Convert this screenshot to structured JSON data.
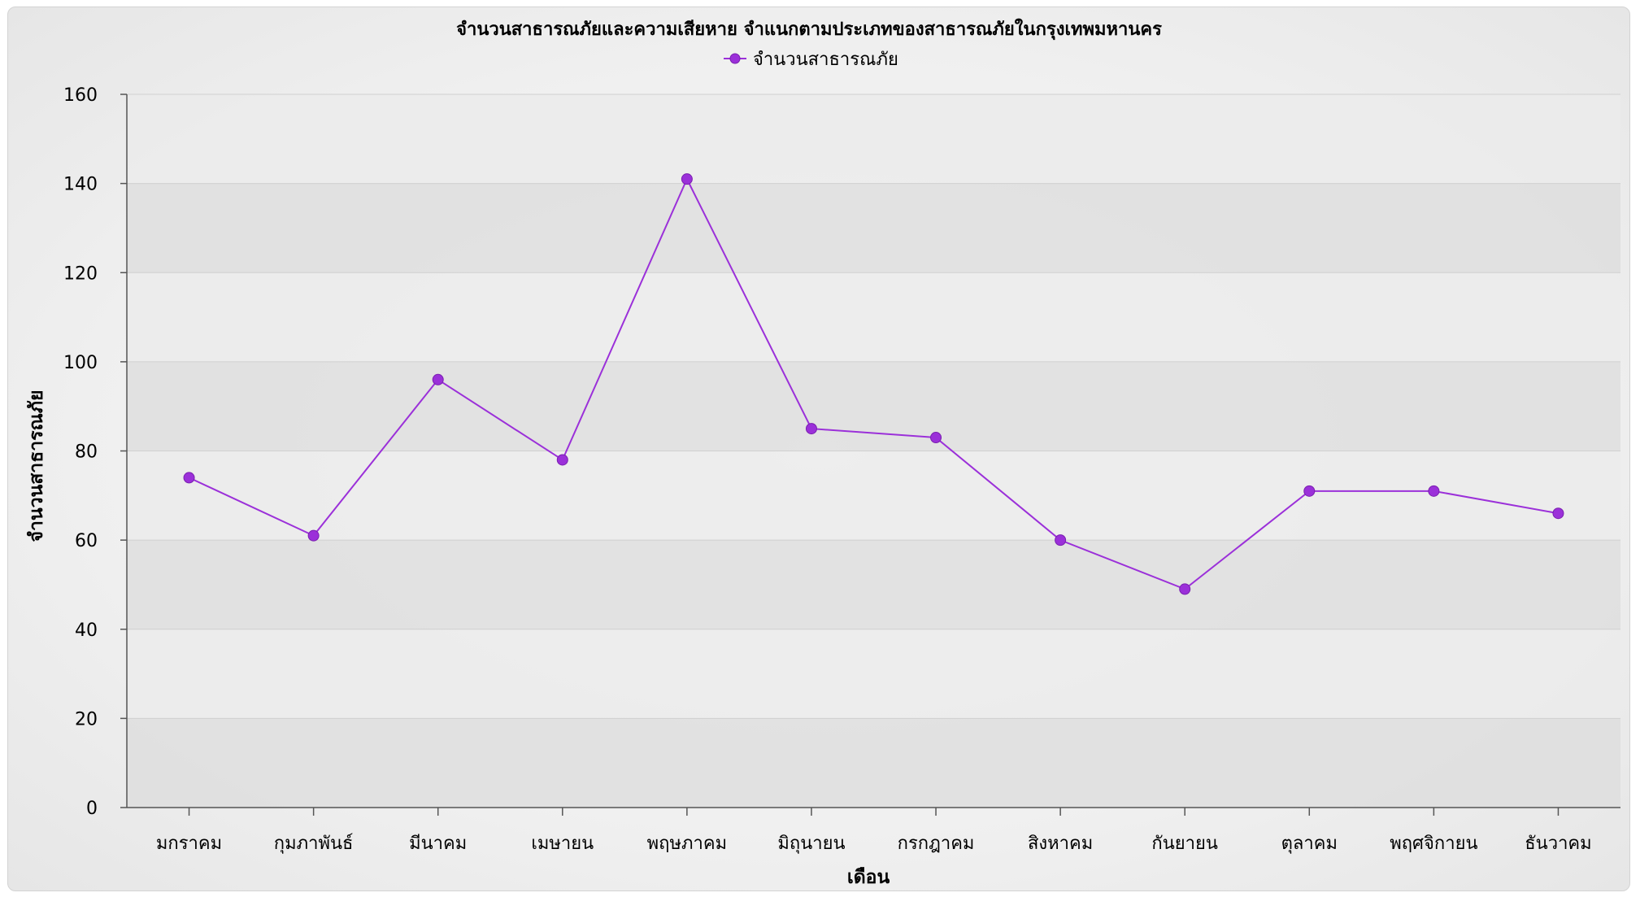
{
  "chart_data": {
    "type": "line",
    "title": "จำนวนสาธารณภัยและความเสียหาย จำแนกตามประเภทของสาธารณภัยในกรุงเทพมหานคร",
    "xlabel": "เดือน",
    "ylabel": "จำนวนสาธารณภัย",
    "categories": [
      "มกราคม",
      "กุมภาพันธ์",
      "มีนาคม",
      "เมษายน",
      "พฤษภาคม",
      "มิถุนายน",
      "กรกฎาคม",
      "สิงหาคม",
      "กันยายน",
      "ตุลาคม",
      "พฤศจิกายน",
      "ธันวาคม"
    ],
    "series": [
      {
        "name": "จำนวนสาธารณภัย",
        "color": "#9b30d9",
        "values": [
          74,
          61,
          96,
          78,
          141,
          85,
          83,
          60,
          49,
          71,
          71,
          66
        ]
      }
    ],
    "ylim": [
      0,
      160
    ],
    "yticks": [
      0,
      20,
      40,
      60,
      80,
      100,
      120,
      140,
      160
    ],
    "grid": true,
    "legend_position": "top-center"
  }
}
